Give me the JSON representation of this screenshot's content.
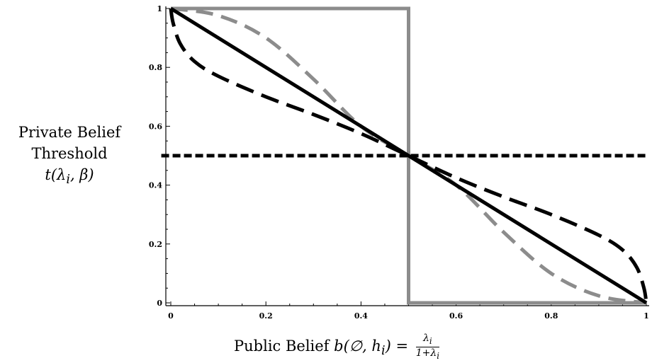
{
  "chart_data": {
    "type": "line",
    "xlim": [
      0,
      1
    ],
    "ylim": [
      0,
      1
    ],
    "xticks": [
      "0",
      "0.2",
      "0.4",
      "0.6",
      "0.8",
      "1"
    ],
    "yticks": [
      "0",
      "0.2",
      "0.4",
      "0.6",
      "0.8",
      "1"
    ],
    "ylabel": {
      "line1": "Private Belief",
      "line2": "Threshold",
      "line3": "t(λ",
      "line3_sub": "i",
      "line3_rest": ", β)"
    },
    "xlabel": {
      "prefix": "Public Belief",
      "expr": "b(∅, h",
      "expr_sub": "i",
      "expr_rest": ") =",
      "frac_num": "λ",
      "frac_num_sub": "i",
      "frac_den": "1+λ",
      "frac_den_sub": "i"
    },
    "grid": false,
    "series": [
      {
        "style": "gray-solid-step",
        "color": "#8c8c8c",
        "dash": "",
        "x": [
          0,
          0.5,
          0.5,
          1
        ],
        "y": [
          1,
          1,
          0,
          0
        ]
      },
      {
        "style": "gray-long-dash",
        "color": "#8c8c8c",
        "dash": "24 12",
        "x": [
          0,
          0.1,
          0.2,
          0.3,
          0.4,
          0.5,
          0.6,
          0.7,
          0.8,
          0.9,
          1
        ],
        "y": [
          1,
          0.976,
          0.9,
          0.76,
          0.6,
          0.5,
          0.4,
          0.24,
          0.1,
          0.024,
          0
        ]
      },
      {
        "style": "black-solid-diagonal",
        "color": "#000000",
        "dash": "",
        "x": [
          0,
          1
        ],
        "y": [
          1,
          0
        ]
      },
      {
        "style": "black-long-dash",
        "color": "#000000",
        "dash": "26 12",
        "x": [
          0,
          0.005,
          0.02,
          0.05,
          0.1,
          0.2,
          0.3,
          0.4,
          0.5,
          0.6,
          0.7,
          0.8,
          0.9,
          0.95,
          0.98,
          0.995,
          1
        ],
        "y": [
          1,
          0.95,
          0.88,
          0.82,
          0.77,
          0.7,
          0.64,
          0.575,
          0.5,
          0.425,
          0.36,
          0.3,
          0.23,
          0.18,
          0.12,
          0.05,
          0
        ]
      },
      {
        "style": "black-short-dash-flat",
        "color": "#000000",
        "dash": "11 5",
        "x": [
          -0.02,
          1
        ],
        "y": [
          0.5,
          0.5
        ]
      }
    ]
  }
}
